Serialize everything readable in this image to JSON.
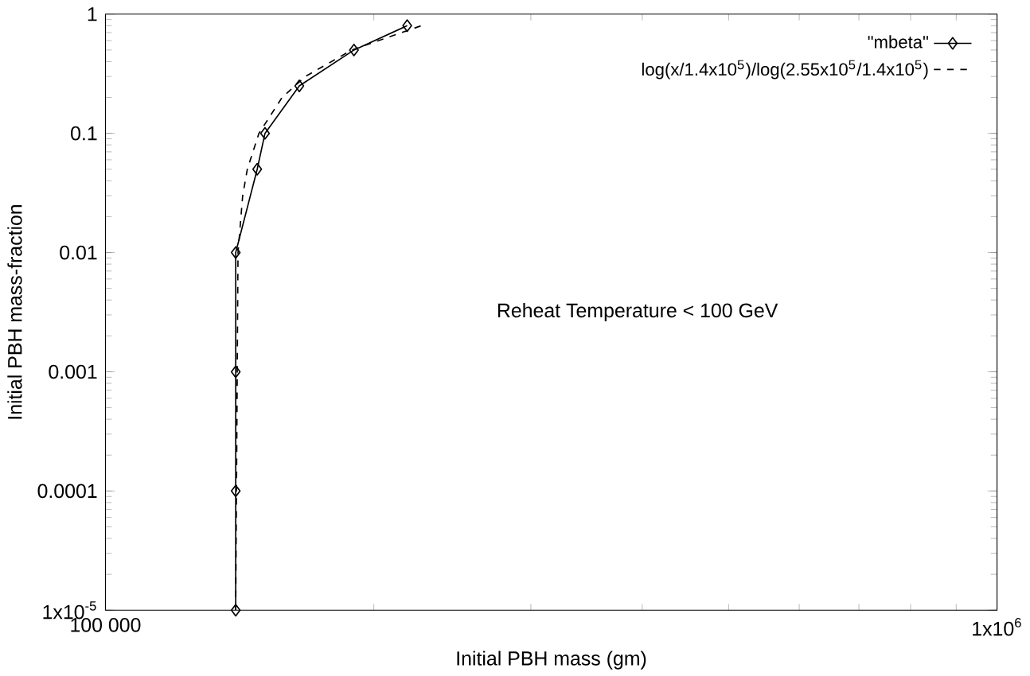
{
  "chart_data": {
    "type": "line",
    "xlabel": "Initial PBH mass (gm)",
    "ylabel": "Initial PBH mass-fraction",
    "log": "xy",
    "xlim": [
      100000,
      1000000
    ],
    "ylim": [
      1e-05,
      1
    ],
    "xticks": [
      {
        "value": 100000,
        "label": "100 000"
      },
      {
        "value": 1000000,
        "label": "1x10$^{6}$"
      }
    ],
    "yticks": [
      {
        "value": 1e-05,
        "label": "1x10$^{-5}$"
      },
      0.0001,
      0.001,
      0.01,
      0.1,
      1
    ],
    "legend": "top right",
    "grid": false,
    "annotations": [
      "Reheat Temperature < 100 GeV"
    ],
    "series": [
      {
        "name": "\"mbeta\"",
        "color": "#000000",
        "marker": "diamond",
        "line_style": "solid",
        "x": [
          140000,
          140000,
          140000,
          140000,
          148000,
          151000,
          165000,
          190000,
          218000
        ],
        "values": [
          1e-05,
          0.0001,
          0.001,
          0.01,
          0.05,
          0.1,
          0.25,
          0.5,
          0.8
        ]
      },
      {
        "name": "log(x/1.4x10$^{5}$)/log(2.55x10$^{5}$/1.4x10$^{5}$)",
        "color": "#000000",
        "marker": "none",
        "line_style": "dashed",
        "x": [
          140000,
          140841,
          142541,
          144260,
          148652,
          157837,
          167588,
          188947,
          226170
        ],
        "values": [
          1e-05,
          0.01,
          0.03,
          0.05,
          0.1,
          0.2,
          0.3,
          0.5,
          0.8
        ]
      }
    ]
  }
}
